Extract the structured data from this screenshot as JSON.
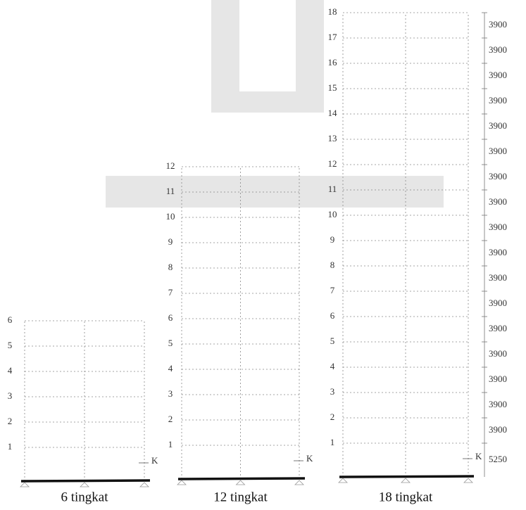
{
  "frames": [
    {
      "levels": [
        "1",
        "2",
        "3",
        "4",
        "5",
        "6"
      ],
      "support_label": "K",
      "caption": "6 tingkat"
    },
    {
      "levels": [
        "1",
        "2",
        "3",
        "4",
        "5",
        "6",
        "7",
        "8",
        "9",
        "10",
        "11",
        "12"
      ],
      "support_label": "K",
      "caption": "12 tingkat"
    },
    {
      "levels": [
        "1",
        "2",
        "3",
        "4",
        "5",
        "6",
        "7",
        "8",
        "9",
        "10",
        "11",
        "12",
        "13",
        "14",
        "15",
        "16",
        "17",
        "18"
      ],
      "support_label": "K",
      "caption": "18 tingkat"
    }
  ],
  "dimensions": [
    "5250",
    "3900",
    "3900",
    "3900",
    "3900",
    "3900",
    "3900",
    "3900",
    "3900",
    "3900",
    "3900",
    "3900",
    "3900",
    "3900",
    "3900",
    "3900",
    "3900",
    "3900"
  ]
}
